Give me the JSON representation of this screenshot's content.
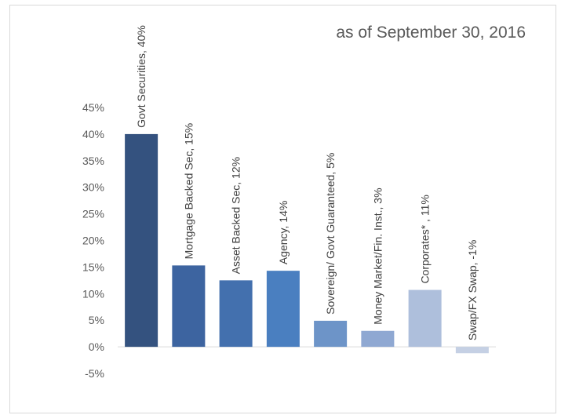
{
  "chart_data": {
    "type": "bar",
    "title": "as of September 30, 2016",
    "xlabel": "",
    "ylabel": "",
    "ylim": [
      -5,
      45
    ],
    "yticks": [
      -5,
      0,
      5,
      10,
      15,
      20,
      25,
      30,
      35,
      40,
      45
    ],
    "ytick_labels": [
      "-5%",
      "0%",
      "5%",
      "10%",
      "15%",
      "20%",
      "25%",
      "30%",
      "35%",
      "40%",
      "45%"
    ],
    "grid": false,
    "legend": "none",
    "categories": [
      "Govt Securities",
      "Mortgage Backed Sec",
      "Asset Backed Sec",
      "Agency",
      "Sovereign/ Govt Guaranteed",
      "Money Market/Fin. Inst.",
      "Corporates*",
      "Swap/FX Swap"
    ],
    "values": [
      40,
      15.3,
      12.5,
      14.3,
      4.9,
      3,
      10.7,
      -1.2
    ],
    "data_labels": [
      "Govt Securities, 40%",
      "Mortgage Backed Sec, 15%",
      "Asset Backed Sec, 12%",
      "Agency, 14%",
      "Sovereign/ Govt Guaranteed, 5%",
      "Money Market/Fin. Inst., 3%",
      "Corporates* , 11%",
      "Swap/FX Swap, -1%"
    ],
    "colors": [
      "#34527f",
      "#3d64a0",
      "#4370ae",
      "#4a7fc0",
      "#6d94c8",
      "#8fa8d2",
      "#aebfdc",
      "#c5d0e4"
    ],
    "axis_color": "#d9d9d9",
    "text_color": "#595959"
  }
}
